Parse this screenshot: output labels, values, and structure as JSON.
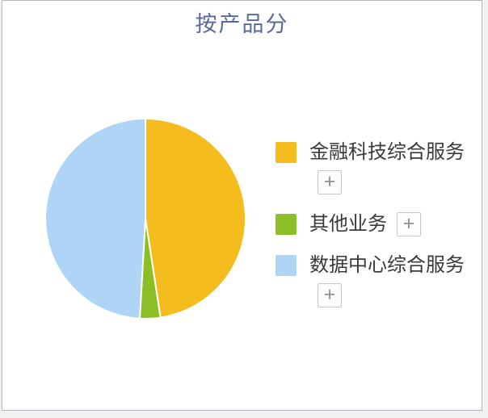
{
  "card": {
    "title": "按产品分"
  },
  "chart_data": {
    "type": "pie",
    "title": "按产品分",
    "categories": [
      "金融科技综合服务",
      "其他业务",
      "数据中心综合服务"
    ],
    "values": [
      47.6,
      3.3,
      49.1
    ],
    "unit": "percent",
    "colors": [
      "#F5BC1E",
      "#8CBF26",
      "#AED5F6"
    ],
    "start_angle": "12-oclock",
    "direction": "clockwise",
    "slice_border_color": "#FFFFFF",
    "legend_position": "right",
    "data_labels_shown": false
  },
  "legend": {
    "items": [
      {
        "label": "金融科技综合服务",
        "color": "#F5BC1E",
        "expand_button": "+"
      },
      {
        "label": "其他业务",
        "color": "#8CBF26",
        "expand_button": "+"
      },
      {
        "label": "数据中心综合服务",
        "color": "#AED5F6",
        "expand_button": "+"
      }
    ]
  },
  "colors": {
    "title_text": "#58699B",
    "legend_text": "#3A3A3A",
    "card_border": "#B6B6BE",
    "card_background": "#FFFFFF",
    "page_background": "#F1F1F3"
  }
}
